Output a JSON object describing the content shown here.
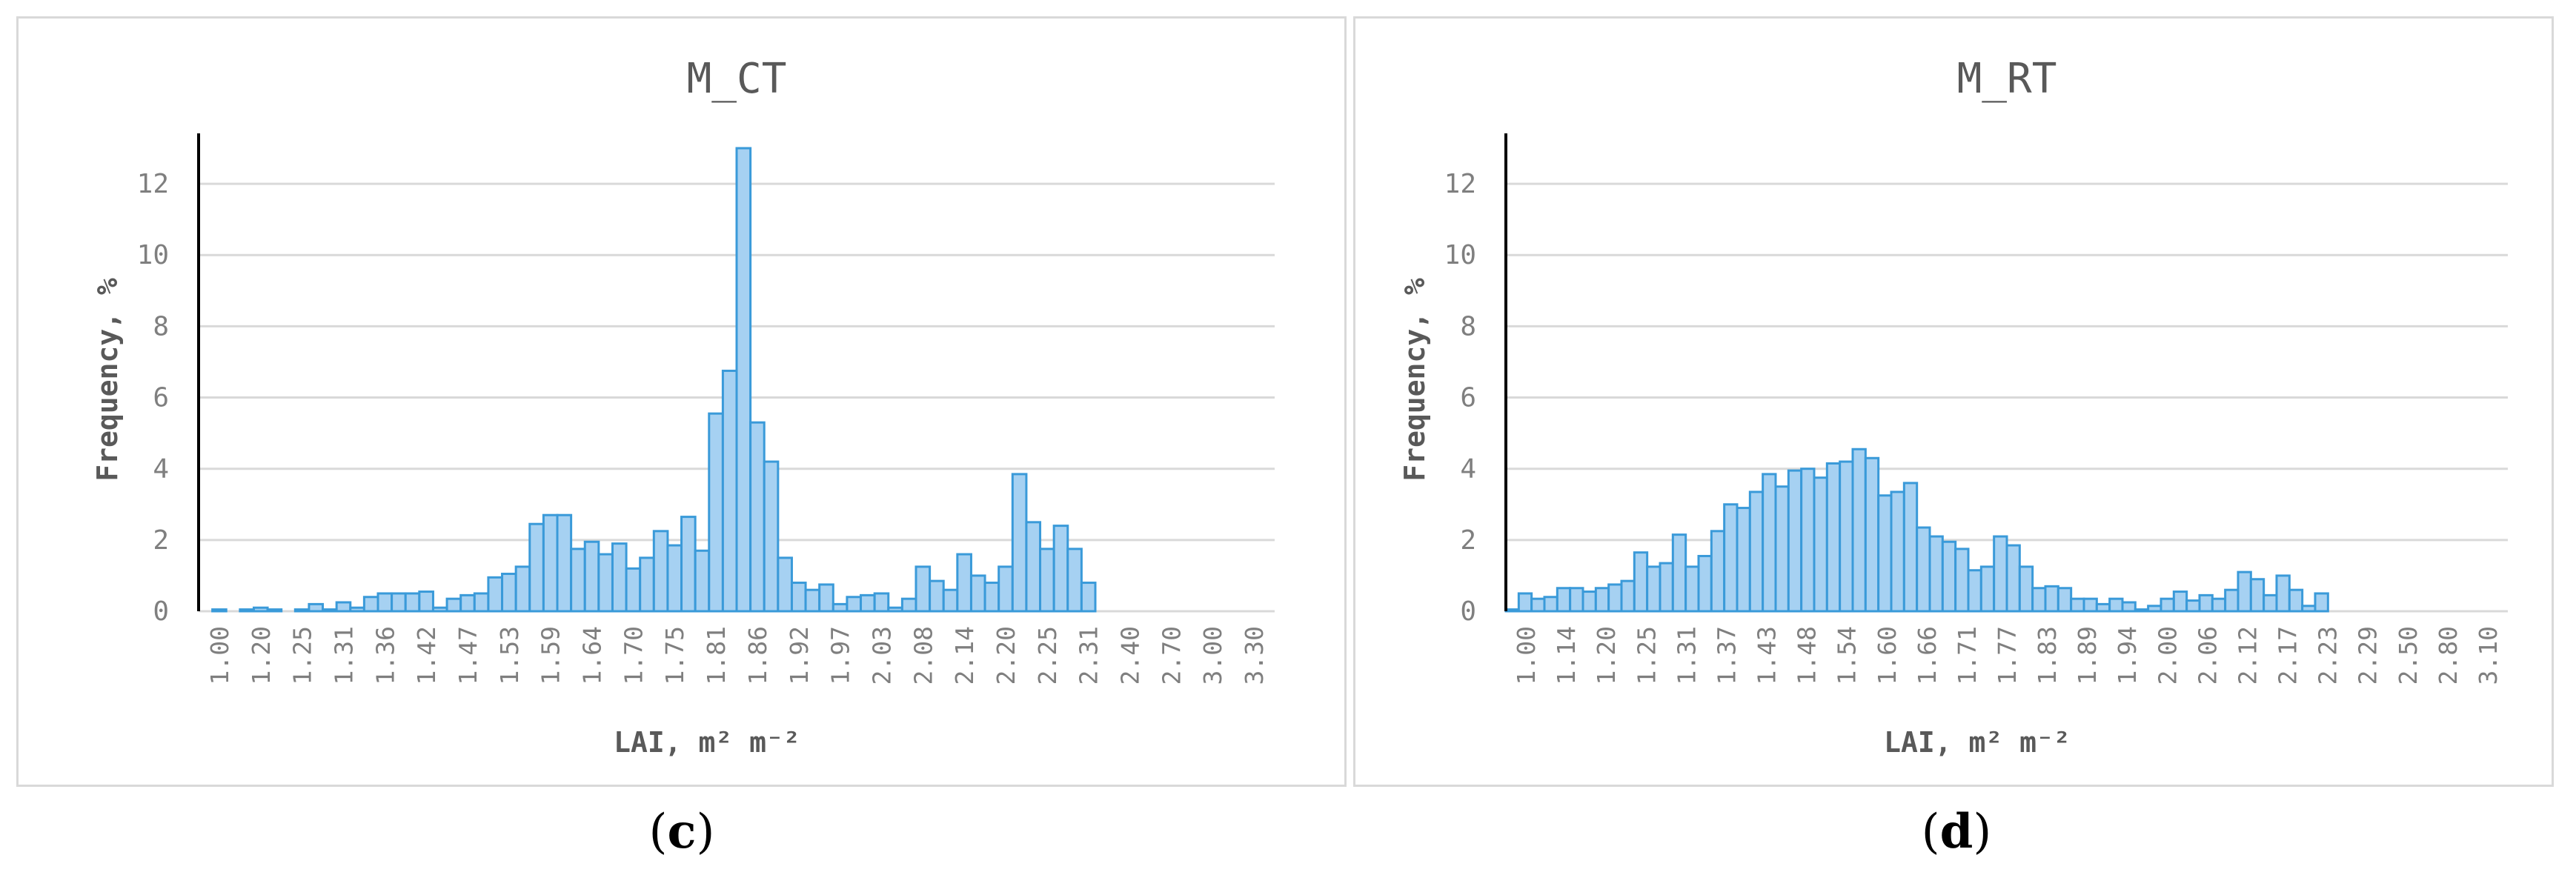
{
  "chart_data": [
    {
      "type": "bar",
      "title": "M_CT",
      "xlabel": "LAI,  m² m⁻²",
      "ylabel": "Frequency, %",
      "ylim": [
        0,
        13
      ],
      "yticks": [
        0,
        2,
        4,
        6,
        8,
        10,
        12
      ],
      "grid": true,
      "panel_label": "c",
      "x_tick_labels": [
        "1.00",
        "1.20",
        "1.25",
        "1.31",
        "1.36",
        "1.42",
        "1.47",
        "1.53",
        "1.59",
        "1.64",
        "1.70",
        "1.75",
        "1.81",
        "1.86",
        "1.92",
        "1.97",
        "2.03",
        "2.08",
        "2.14",
        "2.20",
        "2.25",
        "2.31",
        "2.40",
        "2.70",
        "3.00",
        "3.30"
      ],
      "values": [
        0,
        0.05,
        0,
        0.05,
        0.1,
        0.05,
        0,
        0.05,
        0.2,
        0.05,
        0.25,
        0.1,
        0.4,
        0.5,
        0.5,
        0.5,
        0.55,
        0.1,
        0.35,
        0.45,
        0.5,
        0.95,
        1.05,
        1.25,
        2.45,
        2.7,
        2.7,
        1.75,
        1.95,
        1.6,
        1.9,
        1.2,
        1.5,
        2.25,
        1.85,
        2.65,
        1.7,
        5.55,
        6.75,
        13.0,
        5.3,
        4.2,
        1.5,
        0.8,
        0.6,
        0.75,
        0.2,
        0.4,
        0.45,
        0.5,
        0.1,
        0.35,
        1.25,
        0.85,
        0.6,
        1.6,
        1.0,
        0.8,
        1.25,
        3.85,
        2.5,
        1.75,
        2.4,
        1.75,
        0.8,
        0,
        0,
        0,
        0,
        0,
        0,
        0,
        0,
        0,
        0,
        0,
        0,
        0
      ]
    },
    {
      "type": "bar",
      "title": "M_RT",
      "xlabel": "LAI,  m² m⁻²",
      "ylabel": "Frequency, %",
      "ylim": [
        0,
        13
      ],
      "yticks": [
        0,
        2,
        4,
        6,
        8,
        10,
        12
      ],
      "grid": true,
      "panel_label": "d",
      "x_tick_labels": [
        "1.00",
        "1.14",
        "1.20",
        "1.25",
        "1.31",
        "1.37",
        "1.43",
        "1.48",
        "1.54",
        "1.60",
        "1.66",
        "1.71",
        "1.77",
        "1.83",
        "1.89",
        "1.94",
        "2.00",
        "2.06",
        "2.12",
        "2.17",
        "2.23",
        "2.29",
        "2.50",
        "2.80",
        "3.10"
      ],
      "values": [
        0.05,
        0.5,
        0.35,
        0.4,
        0.65,
        0.65,
        0.55,
        0.65,
        0.75,
        0.85,
        1.65,
        1.25,
        1.35,
        2.15,
        1.25,
        1.55,
        2.25,
        3.0,
        2.9,
        3.35,
        3.85,
        3.5,
        3.95,
        4.0,
        3.75,
        4.15,
        4.2,
        4.55,
        4.3,
        3.25,
        3.35,
        3.6,
        2.35,
        2.1,
        1.95,
        1.75,
        1.15,
        1.25,
        2.1,
        1.85,
        1.25,
        0.65,
        0.7,
        0.65,
        0.35,
        0.35,
        0.2,
        0.35,
        0.25,
        0.05,
        0.15,
        0.35,
        0.55,
        0.3,
        0.45,
        0.35,
        0.6,
        1.1,
        0.9,
        0.45,
        1.0,
        0.6,
        0.15,
        0.5,
        0,
        0,
        0,
        0,
        0,
        0,
        0,
        0,
        0,
        0,
        0,
        0,
        0,
        0
      ]
    }
  ],
  "colors": {
    "bar_fill": "#a6d1f2",
    "bar_stroke": "#3a9ad9",
    "grid": "#d9d9d9",
    "axis": "#000000",
    "text": "#595959"
  }
}
